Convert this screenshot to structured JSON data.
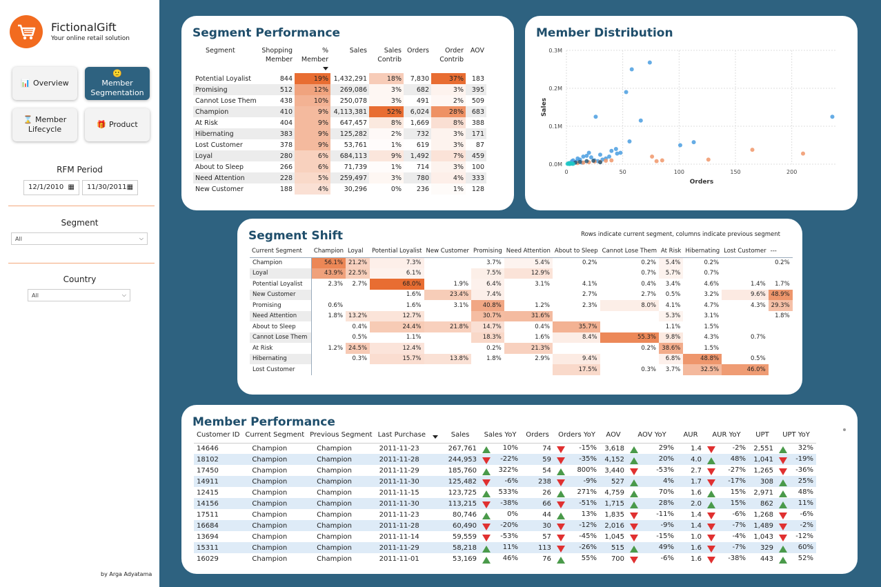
{
  "brand": {
    "name": "FictionalGift",
    "tagline": "Your online retail solution",
    "logo_icon": "shopping-cart-icon",
    "color": "#f26b1f"
  },
  "nav": [
    {
      "label": "Overview",
      "icon": "chart-icon",
      "active": false
    },
    {
      "label": "Member Segmentation",
      "icon": "person-icon",
      "active": true
    },
    {
      "label": "Member Lifecycle",
      "icon": "hourglass-icon",
      "active": false
    },
    {
      "label": "Product",
      "icon": "gift-icon",
      "active": false
    }
  ],
  "filters": {
    "rfm_title": "RFM Period",
    "date_start": "12/1/2010",
    "date_end": "11/30/2011",
    "segment_title": "Segment",
    "segment_value": "All",
    "country_title": "Country",
    "country_value": "All"
  },
  "author": "by Arga Adyatama",
  "segment_performance": {
    "title": "Segment Performance",
    "columns": [
      "Segment",
      "Shopping Member",
      "% Member",
      "Sales",
      "Sales Contrib",
      "Orders",
      "Order Contrib",
      "AOV"
    ],
    "rows": [
      [
        "Potential Loyalist",
        "844",
        "19%",
        "1,432,291",
        "18%",
        "7,830",
        "37%",
        "183"
      ],
      [
        "Promising",
        "512",
        "12%",
        "269,086",
        "3%",
        "682",
        "3%",
        "395"
      ],
      [
        "Cannot Lose Them",
        "438",
        "10%",
        "250,078",
        "3%",
        "491",
        "2%",
        "509"
      ],
      [
        "Champion",
        "410",
        "9%",
        "4,113,381",
        "52%",
        "6,024",
        "28%",
        "683"
      ],
      [
        "At Risk",
        "404",
        "9%",
        "647,457",
        "8%",
        "1,669",
        "8%",
        "388"
      ],
      [
        "Hibernating",
        "383",
        "9%",
        "125,282",
        "2%",
        "732",
        "3%",
        "171"
      ],
      [
        "Lost Customer",
        "378",
        "9%",
        "53,761",
        "1%",
        "619",
        "3%",
        "87"
      ],
      [
        "Loyal",
        "280",
        "6%",
        "684,113",
        "9%",
        "1,492",
        "7%",
        "459"
      ],
      [
        "About to Sleep",
        "266",
        "6%",
        "71,739",
        "1%",
        "714",
        "3%",
        "100"
      ],
      [
        "Need Attention",
        "228",
        "5%",
        "259,497",
        "3%",
        "780",
        "4%",
        "333"
      ],
      [
        "New Customer",
        "188",
        "4%",
        "30,296",
        "0%",
        "236",
        "1%",
        "128"
      ]
    ]
  },
  "chart_data": {
    "type": "scatter",
    "title": "Member Distribution",
    "xlabel": "Orders",
    "ylabel": "Sales",
    "xlim": [
      0,
      240
    ],
    "ylim": [
      0,
      300000
    ],
    "xticks": [
      "0",
      "50",
      "100",
      "150",
      "200"
    ],
    "yticks": [
      "0.0M",
      "0.1M",
      "0.2M",
      "0.3M"
    ],
    "grid": true,
    "series": [
      {
        "color": "#4a9de0",
        "points": [
          [
            74,
            268000
          ],
          [
            58,
            250000
          ],
          [
            236,
            125000
          ],
          [
            53,
            190000
          ],
          [
            26,
            125000
          ],
          [
            66,
            115000
          ],
          [
            113,
            58000
          ],
          [
            56,
            60000
          ],
          [
            101,
            50000
          ],
          [
            44,
            40000
          ],
          [
            40,
            35000
          ],
          [
            20,
            30000
          ],
          [
            30,
            25000
          ],
          [
            15,
            20000
          ],
          [
            10,
            15000
          ],
          [
            5,
            8000
          ],
          [
            8,
            5000
          ],
          [
            12,
            12000
          ],
          [
            18,
            22000
          ],
          [
            22,
            18000
          ],
          [
            25,
            10000
          ],
          [
            35,
            15000
          ],
          [
            3,
            3000
          ],
          [
            6,
            10000
          ],
          [
            9,
            7000
          ],
          [
            14,
            4000
          ],
          [
            28,
            8000
          ],
          [
            32,
            12000
          ],
          [
            38,
            20000
          ],
          [
            45,
            28000
          ],
          [
            48,
            30000
          ]
        ]
      },
      {
        "color": "#f0976a",
        "points": [
          [
            165,
            38000
          ],
          [
            210,
            28000
          ],
          [
            126,
            12000
          ],
          [
            85,
            10000
          ],
          [
            80,
            8000
          ],
          [
            76,
            20000
          ],
          [
            40,
            10000
          ],
          [
            30,
            6000
          ],
          [
            20,
            5000
          ],
          [
            15,
            4000
          ],
          [
            10,
            3000
          ],
          [
            25,
            7000
          ],
          [
            35,
            9000
          ]
        ]
      },
      {
        "color": "#2a5a78",
        "points": [
          [
            18,
            8000
          ],
          [
            12,
            6000
          ],
          [
            24,
            9000
          ],
          [
            8,
            4000
          ],
          [
            30,
            5000
          ]
        ]
      },
      {
        "color": "#1fc6c6",
        "points": [
          [
            2,
            1000
          ],
          [
            3,
            1500
          ],
          [
            4,
            2000
          ],
          [
            5,
            1200
          ],
          [
            6,
            900
          ],
          [
            2,
            2500
          ],
          [
            3,
            500
          ],
          [
            1,
            800
          ]
        ]
      }
    ]
  },
  "segment_shift": {
    "title": "Segment Shift",
    "note": "Rows indicate current segment, columns indicate previous segment",
    "columns": [
      "Current Segment",
      "Champion",
      "Loyal",
      "Potential Loyalist",
      "New Customer",
      "Promising",
      "Need Attention",
      "About to Sleep",
      "Cannot Lose Them",
      "At Risk",
      "Hibernating",
      "Lost Customer",
      "---"
    ],
    "rows": [
      [
        "Champion",
        "56.1%",
        "21.2%",
        "7.3%",
        "",
        "3.7%",
        "5.4%",
        "0.2%",
        "0.2%",
        "5.4%",
        "0.2%",
        "",
        "0.2%"
      ],
      [
        "Loyal",
        "43.9%",
        "22.5%",
        "6.1%",
        "",
        "7.5%",
        "12.9%",
        "",
        "0.7%",
        "5.7%",
        "0.7%",
        "",
        ""
      ],
      [
        "Potential Loyalist",
        "2.3%",
        "2.7%",
        "68.0%",
        "1.9%",
        "6.4%",
        "3.1%",
        "4.1%",
        "0.4%",
        "3.4%",
        "4.6%",
        "1.4%",
        "1.7%"
      ],
      [
        "New Customer",
        "",
        "",
        "1.6%",
        "23.4%",
        "7.4%",
        "",
        "2.7%",
        "2.7%",
        "0.5%",
        "3.2%",
        "9.6%",
        "48.9%"
      ],
      [
        "Promising",
        "0.6%",
        "",
        "1.6%",
        "3.1%",
        "40.8%",
        "1.2%",
        "2.3%",
        "8.0%",
        "4.1%",
        "4.7%",
        "4.3%",
        "29.3%"
      ],
      [
        "Need Attention",
        "1.8%",
        "13.2%",
        "12.7%",
        "",
        "30.7%",
        "31.6%",
        "",
        "",
        "5.3%",
        "3.1%",
        "",
        "1.8%"
      ],
      [
        "About to Sleep",
        "",
        "0.4%",
        "24.4%",
        "21.8%",
        "14.7%",
        "0.4%",
        "35.7%",
        "",
        "1.1%",
        "1.5%",
        "",
        ""
      ],
      [
        "Cannot Lose Them",
        "",
        "0.5%",
        "1.1%",
        "",
        "18.3%",
        "1.6%",
        "8.4%",
        "55.3%",
        "9.8%",
        "4.3%",
        "0.7%",
        ""
      ],
      [
        "At Risk",
        "1.2%",
        "24.5%",
        "12.4%",
        "",
        "0.2%",
        "21.3%",
        "",
        "0.2%",
        "38.6%",
        "1.5%",
        "",
        ""
      ],
      [
        "Hibernating",
        "",
        "0.3%",
        "15.7%",
        "13.8%",
        "1.8%",
        "2.9%",
        "9.4%",
        "",
        "6.8%",
        "48.8%",
        "0.5%",
        ""
      ],
      [
        "Lost Customer",
        "",
        "",
        "",
        "",
        "",
        "",
        "17.5%",
        "0.3%",
        "3.7%",
        "32.5%",
        "46.0%",
        ""
      ]
    ]
  },
  "member_performance": {
    "title": "Member Performance",
    "columns": [
      "Customer ID",
      "Current Segment",
      "Previous Segment",
      "Last Purchase",
      "Sales",
      "Sales YoY",
      "Orders",
      "Orders YoY",
      "AOV",
      "AOV YoY",
      "AUR",
      "AUR YoY",
      "UPT",
      "UPT YoY"
    ],
    "rows": [
      [
        "14646",
        "Champion",
        "Champion",
        "2011-11-23",
        "267,761",
        "up",
        "10%",
        "74",
        "down",
        "-15%",
        "3,618",
        "up",
        "29%",
        "1.4",
        "down",
        "-2%",
        "2,551",
        "up",
        "32%"
      ],
      [
        "18102",
        "Champion",
        "Champion",
        "2011-11-28",
        "244,953",
        "down",
        "-22%",
        "59",
        "down",
        "-35%",
        "4,152",
        "up",
        "20%",
        "4.0",
        "up",
        "48%",
        "1,041",
        "down",
        "-19%"
      ],
      [
        "17450",
        "Champion",
        "Champion",
        "2011-11-29",
        "185,760",
        "up",
        "322%",
        "54",
        "up",
        "800%",
        "3,440",
        "down",
        "-53%",
        "2.7",
        "down",
        "-27%",
        "1,265",
        "down",
        "-36%"
      ],
      [
        "14911",
        "Champion",
        "Champion",
        "2011-11-30",
        "125,482",
        "down",
        "-6%",
        "238",
        "down",
        "-9%",
        "527",
        "up",
        "4%",
        "1.7",
        "down",
        "-17%",
        "308",
        "up",
        "25%"
      ],
      [
        "12415",
        "Champion",
        "Champion",
        "2011-11-15",
        "123,725",
        "up",
        "533%",
        "26",
        "up",
        "271%",
        "4,759",
        "up",
        "70%",
        "1.6",
        "up",
        "15%",
        "2,971",
        "up",
        "48%"
      ],
      [
        "14156",
        "Champion",
        "Champion",
        "2011-11-30",
        "113,215",
        "down",
        "-38%",
        "66",
        "down",
        "-51%",
        "1,715",
        "up",
        "28%",
        "2.0",
        "up",
        "15%",
        "862",
        "up",
        "11%"
      ],
      [
        "17511",
        "Champion",
        "Champion",
        "2011-11-23",
        "80,746",
        "up",
        "0%",
        "44",
        "up",
        "13%",
        "1,835",
        "down",
        "-11%",
        "1.4",
        "down",
        "-6%",
        "1,268",
        "down",
        "-6%"
      ],
      [
        "16684",
        "Champion",
        "Champion",
        "2011-11-28",
        "60,490",
        "down",
        "-20%",
        "30",
        "down",
        "-12%",
        "2,016",
        "down",
        "-9%",
        "1.4",
        "down",
        "-7%",
        "1,489",
        "down",
        "-2%"
      ],
      [
        "13694",
        "Champion",
        "Champion",
        "2011-11-14",
        "59,559",
        "down",
        "-53%",
        "57",
        "down",
        "-45%",
        "1,045",
        "down",
        "-15%",
        "1.0",
        "down",
        "-4%",
        "1,043",
        "down",
        "-12%"
      ],
      [
        "15311",
        "Champion",
        "Champion",
        "2011-11-29",
        "58,218",
        "up",
        "11%",
        "113",
        "down",
        "-26%",
        "515",
        "up",
        "49%",
        "1.6",
        "down",
        "-7%",
        "329",
        "up",
        "60%"
      ],
      [
        "16029",
        "Champion",
        "Champion",
        "2011-11-01",
        "53,169",
        "up",
        "46%",
        "76",
        "up",
        "55%",
        "700",
        "down",
        "-6%",
        "1.6",
        "down",
        "-38%",
        "443",
        "up",
        "52%"
      ]
    ]
  }
}
